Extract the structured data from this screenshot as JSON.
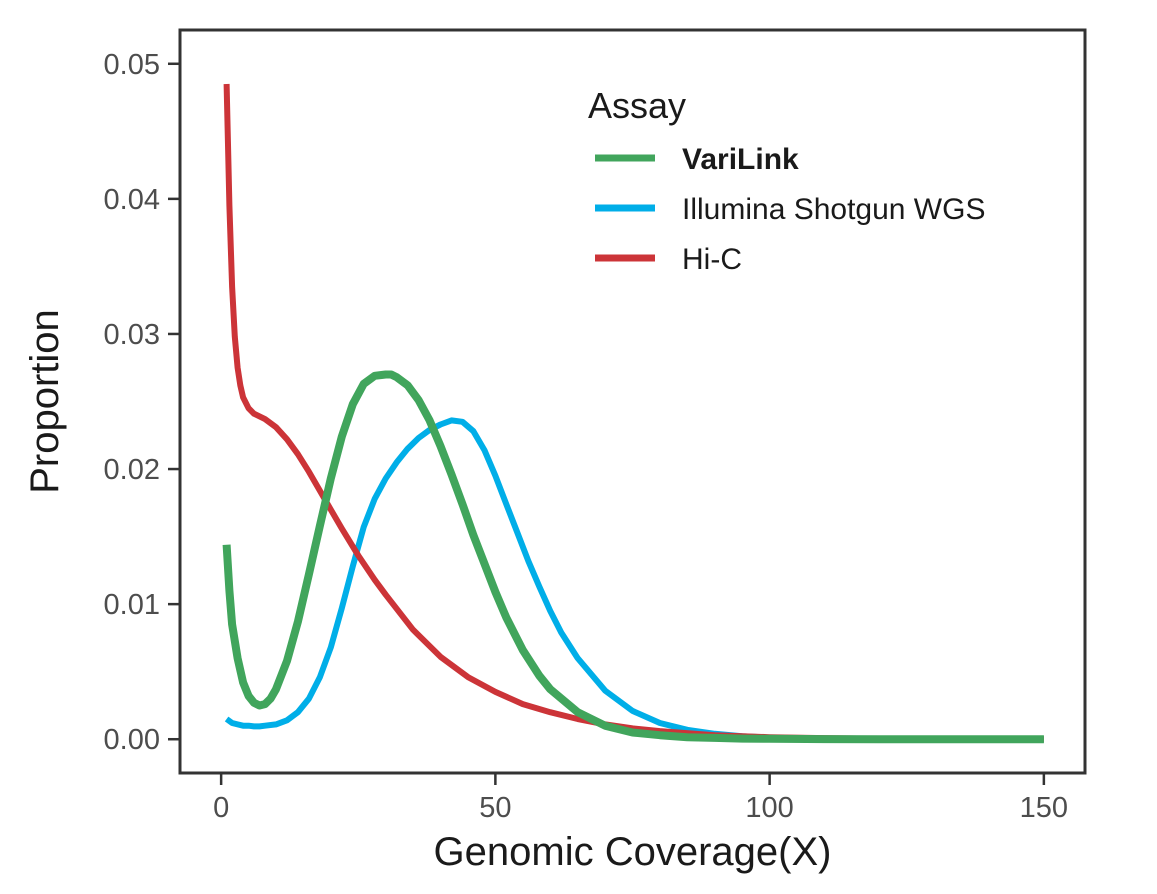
{
  "chart_data": {
    "type": "line",
    "xlabel": "Genomic Coverage(X)",
    "ylabel": "Proportion",
    "xlim": [
      -7.5,
      157.5
    ],
    "ylim": [
      -0.0025,
      0.0525
    ],
    "x_ticks": [
      0,
      50,
      100,
      150
    ],
    "x_tick_labels": [
      "0",
      "50",
      "100",
      "150"
    ],
    "y_ticks": [
      0,
      0.01,
      0.02,
      0.03,
      0.04,
      0.05
    ],
    "y_tick_labels": [
      "0.00",
      "0.01",
      "0.02",
      "0.03",
      "0.04",
      "0.05"
    ],
    "grid": false,
    "legend": {
      "title": "Assay",
      "position": "top-right (inside)"
    },
    "series": [
      {
        "name": "VariLink",
        "color": "#41a55c",
        "bold_label": true,
        "x": [
          1,
          1.5,
          2,
          3,
          4,
          5,
          6,
          7,
          8,
          9,
          10,
          12,
          14,
          16,
          18,
          20,
          22,
          24,
          26,
          28,
          30,
          31,
          32,
          34,
          36,
          38,
          40,
          42,
          44,
          46,
          48,
          50,
          52,
          55,
          58,
          60,
          65,
          70,
          75,
          80,
          85,
          90,
          95,
          100,
          110,
          120,
          130,
          140,
          150
        ],
        "y": [
          0.0144,
          0.011,
          0.0085,
          0.006,
          0.0042,
          0.0032,
          0.0027,
          0.0025,
          0.0026,
          0.003,
          0.0037,
          0.0058,
          0.0087,
          0.0122,
          0.0158,
          0.0193,
          0.0224,
          0.0248,
          0.0263,
          0.0269,
          0.027,
          0.027,
          0.0268,
          0.0262,
          0.0251,
          0.0236,
          0.0217,
          0.0196,
          0.0174,
          0.0151,
          0.013,
          0.0109,
          0.009,
          0.0066,
          0.0047,
          0.0037,
          0.002,
          0.001,
          0.0005,
          0.0003,
          0.00015,
          0.0001,
          5e-05,
          3e-05,
          1e-05,
          0.0,
          0.0,
          0.0,
          0.0
        ]
      },
      {
        "name": "Illumina Shotgun WGS",
        "color": "#00aee8",
        "bold_label": false,
        "x": [
          1,
          2,
          3,
          4,
          5,
          6,
          7,
          8,
          10,
          12,
          14,
          16,
          18,
          20,
          22,
          24,
          26,
          28,
          30,
          32,
          34,
          36,
          38,
          40,
          42,
          44,
          46,
          48,
          50,
          52,
          54,
          56,
          58,
          60,
          62,
          65,
          70,
          75,
          80,
          85,
          90,
          95,
          100,
          110,
          120,
          130,
          140,
          150
        ],
        "y": [
          0.0015,
          0.0012,
          0.0011,
          0.001,
          0.001,
          0.00095,
          0.00095,
          0.001,
          0.0011,
          0.0014,
          0.002,
          0.003,
          0.0046,
          0.0068,
          0.0097,
          0.0128,
          0.0157,
          0.0178,
          0.0193,
          0.0205,
          0.0215,
          0.0223,
          0.0229,
          0.0233,
          0.0236,
          0.0235,
          0.0228,
          0.0214,
          0.0195,
          0.0174,
          0.0153,
          0.0132,
          0.0113,
          0.0095,
          0.0079,
          0.006,
          0.0036,
          0.0021,
          0.0012,
          0.0007,
          0.0004,
          0.00022,
          0.00012,
          4e-05,
          1e-05,
          0.0,
          0.0,
          0.0
        ]
      },
      {
        "name": "Hi-C",
        "color": "#cc3438",
        "bold_label": false,
        "x": [
          1,
          1.5,
          2,
          2.5,
          3,
          3.5,
          4,
          5,
          6,
          8,
          10,
          12,
          14,
          16,
          18,
          20,
          22,
          25,
          28,
          30,
          35,
          40,
          45,
          50,
          55,
          60,
          65,
          70,
          75,
          80,
          90,
          100,
          110,
          120,
          130,
          140,
          150
        ],
        "y": [
          0.0485,
          0.0395,
          0.0335,
          0.0298,
          0.0275,
          0.0262,
          0.0253,
          0.0245,
          0.0241,
          0.0237,
          0.0231,
          0.0222,
          0.0211,
          0.0198,
          0.0184,
          0.017,
          0.0156,
          0.0136,
          0.0118,
          0.0107,
          0.0081,
          0.0061,
          0.0046,
          0.0035,
          0.0026,
          0.002,
          0.0015,
          0.0011,
          0.0008,
          0.0006,
          0.0003,
          0.00015,
          8e-05,
          4e-05,
          2e-05,
          1e-05,
          0.0
        ]
      }
    ]
  }
}
